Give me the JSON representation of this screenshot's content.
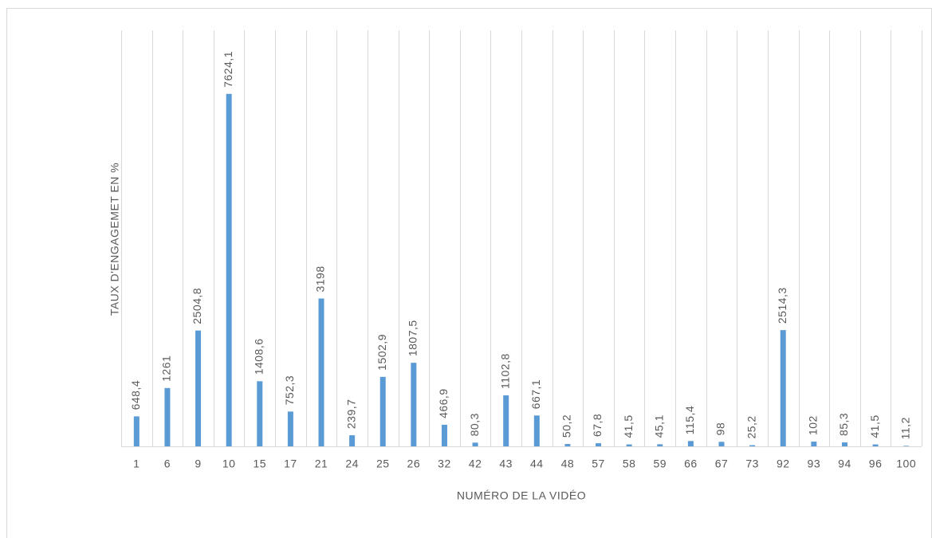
{
  "chart_data": {
    "type": "bar",
    "x_label": "NUMÉRO DE LA VIDÉO",
    "y_label": "TAUX D'ENGAGEMET EN %",
    "categories": [
      "1",
      "6",
      "9",
      "10",
      "15",
      "17",
      "21",
      "24",
      "25",
      "26",
      "32",
      "42",
      "43",
      "44",
      "48",
      "57",
      "58",
      "59",
      "66",
      "67",
      "73",
      "92",
      "93",
      "94",
      "96",
      "100"
    ],
    "values": [
      648.4,
      1261,
      2504.8,
      7624.1,
      1408.6,
      752.3,
      3198,
      239.7,
      1502.9,
      1807.5,
      466.9,
      80.3,
      1102.8,
      667.1,
      50.2,
      67.8,
      41.5,
      45.1,
      115.4,
      98,
      25.2,
      2514.3,
      102,
      85.3,
      41.5,
      11.2
    ],
    "value_labels": [
      "648,4",
      "1261",
      "2504,8",
      "7624,1",
      "1408,6",
      "752,3",
      "3198",
      "239,7",
      "1502,9",
      "1807,5",
      "466,9",
      "80,3",
      "1102,8",
      "667,1",
      "50,2",
      "67,8",
      "41,5",
      "45,1",
      "115,4",
      "98",
      "25,2",
      "2514,3",
      "102",
      "85,3",
      "41,5",
      "11,2"
    ],
    "color": "#5b9bd5",
    "ylim": [
      0,
      9000
    ],
    "grid": true
  }
}
